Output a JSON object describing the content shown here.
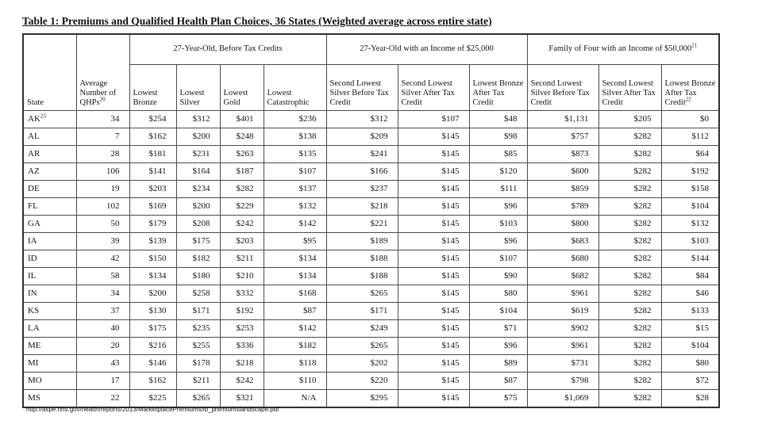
{
  "page": {
    "title": "Table 1: Premiums and Qualified Health Plan Choices, 36 States (Weighted average across entire state)",
    "source_url": "http://aspe.hhs.gov/health/reports/2013/MarketplacePremiums/ib_premiumslandscape.pdf"
  },
  "table": {
    "corner_headers": {
      "state": "State",
      "qhps": "Average Number of QHPs",
      "qhps_sup": "20"
    },
    "groups": [
      {
        "label": "27-Year-Old, Before Tax Credits",
        "colspan": 4
      },
      {
        "label": "27-Year-Old with an Income of $25,000",
        "colspan": 3
      },
      {
        "label": "Family of Four with an Income of $50,000",
        "sup": "21",
        "colspan": 3
      }
    ],
    "sub_headers": [
      {
        "label": "Lowest Bronze"
      },
      {
        "label": "Lowest Silver"
      },
      {
        "label": "Lowest Gold"
      },
      {
        "label": "Lowest Catastrophic"
      },
      {
        "label": "Second Lowest Silver Before Tax Credit"
      },
      {
        "label": "Second Lowest Silver After Tax Credit"
      },
      {
        "label": "Lowest Bronze After Tax Credit"
      },
      {
        "label": "Second Lowest Silver Before Tax Credit"
      },
      {
        "label": "Second Lowest Silver After Tax Credit"
      },
      {
        "label": "Lowest Bronze After Tax Credit",
        "sup": "22"
      }
    ],
    "rows": [
      {
        "state": "AK",
        "state_sup": "23",
        "values": [
          "34",
          "$254",
          "$312",
          "$401",
          "$236",
          "$312",
          "$107",
          "$48",
          "$1,131",
          "$205",
          "$0"
        ]
      },
      {
        "state": "AL",
        "values": [
          "7",
          "$162",
          "$200",
          "$248",
          "$138",
          "$209",
          "$145",
          "$98",
          "$757",
          "$282",
          "$112"
        ]
      },
      {
        "state": "AR",
        "values": [
          "28",
          "$181",
          "$231",
          "$263",
          "$135",
          "$241",
          "$145",
          "$85",
          "$873",
          "$282",
          "$64"
        ]
      },
      {
        "state": "AZ",
        "values": [
          "106",
          "$141",
          "$164",
          "$187",
          "$107",
          "$166",
          "$145",
          "$120",
          "$600",
          "$282",
          "$192"
        ]
      },
      {
        "state": "DE",
        "values": [
          "19",
          "$203",
          "$234",
          "$282",
          "$137",
          "$237",
          "$145",
          "$111",
          "$859",
          "$282",
          "$158"
        ]
      },
      {
        "state": "FL",
        "values": [
          "102",
          "$169",
          "$200",
          "$229",
          "$132",
          "$218",
          "$145",
          "$96",
          "$789",
          "$282",
          "$104"
        ]
      },
      {
        "state": "GA",
        "values": [
          "50",
          "$179",
          "$208",
          "$242",
          "$142",
          "$221",
          "$145",
          "$103",
          "$800",
          "$282",
          "$132"
        ]
      },
      {
        "state": "IA",
        "values": [
          "39",
          "$139",
          "$175",
          "$203",
          "$95",
          "$189",
          "$145",
          "$96",
          "$683",
          "$282",
          "$103"
        ]
      },
      {
        "state": "ID",
        "values": [
          "42",
          "$150",
          "$182",
          "$211",
          "$134",
          "$188",
          "$145",
          "$107",
          "$680",
          "$282",
          "$144"
        ]
      },
      {
        "state": "IL",
        "values": [
          "58",
          "$134",
          "$180",
          "$210",
          "$134",
          "$188",
          "$145",
          "$90",
          "$682",
          "$282",
          "$84"
        ]
      },
      {
        "state": "IN",
        "values": [
          "34",
          "$200",
          "$258",
          "$332",
          "$168",
          "$265",
          "$145",
          "$80",
          "$961",
          "$282",
          "$46"
        ]
      },
      {
        "state": "KS",
        "values": [
          "37",
          "$130",
          "$171",
          "$192",
          "$87",
          "$171",
          "$145",
          "$104",
          "$619",
          "$282",
          "$133"
        ]
      },
      {
        "state": "LA",
        "values": [
          "40",
          "$175",
          "$235",
          "$253",
          "$142",
          "$249",
          "$145",
          "$71",
          "$902",
          "$282",
          "$15"
        ]
      },
      {
        "state": "ME",
        "values": [
          "20",
          "$216",
          "$255",
          "$336",
          "$182",
          "$265",
          "$145",
          "$96",
          "$961",
          "$282",
          "$104"
        ]
      },
      {
        "state": "MI",
        "values": [
          "43",
          "$146",
          "$178",
          "$218",
          "$118",
          "$202",
          "$145",
          "$89",
          "$731",
          "$282",
          "$80"
        ]
      },
      {
        "state": "MO",
        "values": [
          "17",
          "$162",
          "$211",
          "$242",
          "$110",
          "$220",
          "$145",
          "$87",
          "$798",
          "$282",
          "$72"
        ]
      },
      {
        "state": "MS",
        "values": [
          "22",
          "$225",
          "$265",
          "$321",
          "N/A",
          "$295",
          "$145",
          "$75",
          "$1,069",
          "$282",
          "$28"
        ]
      }
    ]
  }
}
